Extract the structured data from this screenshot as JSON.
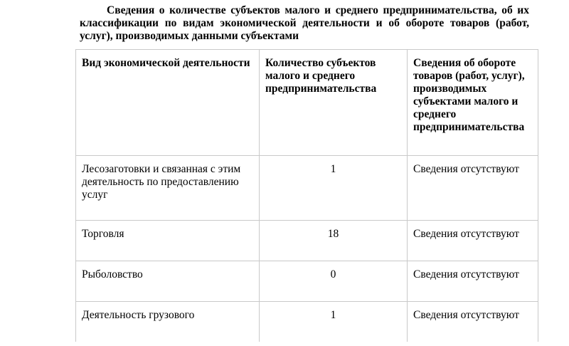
{
  "document": {
    "title": "Сведения о количестве субъектов малого и среднего предпринимательства, об их классификации по видам экономической деятельности и об обороте товаров (работ, услуг), производимых данными субъектами"
  },
  "table": {
    "headers": [
      "Вид экономической деятельности",
      "Количество субъектов малого и среднего предпринимательства",
      "Сведения об обороте товаров (работ, услуг), производимых субъектами малого и среднего предпринимательства"
    ],
    "rows": [
      {
        "activity": "Лесозаготовки и связанная с этим деятельность по предоставлению услуг",
        "count": "1",
        "turnover": "Сведения отсутствуют"
      },
      {
        "activity": "Торговля",
        "count": "18",
        "turnover": "Сведения отсутствуют"
      },
      {
        "activity": "Рыболовство",
        "count": "0",
        "turnover": "Сведения отсутствуют"
      },
      {
        "activity": "Деятельность грузового",
        "count": "1",
        "turnover": "Сведения отсутствуют"
      }
    ]
  }
}
